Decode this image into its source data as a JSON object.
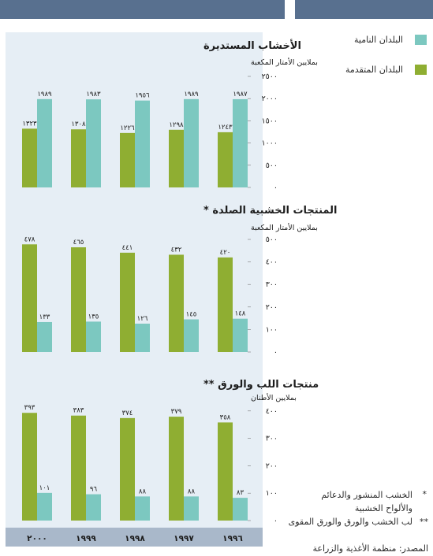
{
  "legend": [
    {
      "label": "البلدان النامية",
      "color": "#7cc8c0"
    },
    {
      "label": "البلدان المتقدمة",
      "color": "#8fae32"
    }
  ],
  "footnotes": [
    {
      "marker": "*",
      "text": "الخشب المنشور والدعائم والألواح الخشبية"
    },
    {
      "marker": "**",
      "text": "لب الخشب والورق والورق المقوى"
    }
  ],
  "source": "المصدر: منظمة الأغذية والزراعة",
  "years": [
    "١٩٩٦",
    "١٩٩٧",
    "١٩٩٨",
    "١٩٩٩",
    "٢٠٠٠"
  ],
  "chart_data": [
    {
      "type": "bar",
      "title": "الأخشاب المستديرة",
      "unit": "بملايين الأمتار المكعبة",
      "categories": [
        "1996",
        "1997",
        "1998",
        "1999",
        "2000"
      ],
      "y_ticks": [
        0,
        500,
        1000,
        1500,
        2000,
        2500
      ],
      "y_tick_labels": [
        "٠",
        "٥٠٠",
        "١٠٠٠",
        "١٥٠٠",
        "٢٠٠٠",
        "٢٥٠٠"
      ],
      "ylim": [
        0,
        2500
      ],
      "series": [
        {
          "name": "البلدان النامية",
          "color": "#7cc8c0",
          "values": [
            1987,
            1989,
            1956,
            1983,
            1989
          ],
          "labels": [
            "١٩٨٧",
            "١٩٨٩",
            "١٩٥٦",
            "١٩٨٣",
            "١٩٨٩"
          ]
        },
        {
          "name": "البلدان المتقدمة",
          "color": "#8fae32",
          "values": [
            1243,
            1298,
            1226,
            1308,
            1323
          ],
          "labels": [
            "١٢٤٣",
            "١٢٩٨",
            "١٢٢٦",
            "١٣٠٨",
            "١٣٢٣"
          ]
        }
      ]
    },
    {
      "type": "bar",
      "title": "المنتجات الخشبية الصلدة *",
      "unit": "بملايين الأمتار المكعبة",
      "categories": [
        "1996",
        "1997",
        "1998",
        "1999",
        "2000"
      ],
      "y_ticks": [
        0,
        100,
        200,
        300,
        400,
        500
      ],
      "y_tick_labels": [
        "٠",
        "١٠٠",
        "٢٠٠",
        "٣٠٠",
        "٤٠٠",
        "٥٠٠"
      ],
      "ylim": [
        0,
        500
      ],
      "series": [
        {
          "name": "البلدان النامية",
          "color": "#7cc8c0",
          "values": [
            148,
            145,
            126,
            135,
            133
          ],
          "labels": [
            "١٤٨",
            "١٤٥",
            "١٢٦",
            "١٣٥",
            "١٣٣"
          ]
        },
        {
          "name": "البلدان المتقدمة",
          "color": "#8fae32",
          "values": [
            420,
            432,
            441,
            465,
            478
          ],
          "labels": [
            "٤٢٠",
            "٤٣٢",
            "٤٤١",
            "٤٦٥",
            "٤٧٨"
          ]
        }
      ]
    },
    {
      "type": "bar",
      "title": "منتجات اللب والورق **",
      "unit": "بملايين الأطنان",
      "categories": [
        "1996",
        "1997",
        "1998",
        "1999",
        "2000"
      ],
      "y_ticks": [
        0,
        100,
        200,
        300,
        400
      ],
      "y_tick_labels": [
        "٠",
        "١٠٠",
        "٢٠٠",
        "٣٠٠",
        "٤٠٠"
      ],
      "ylim": [
        0,
        400
      ],
      "series": [
        {
          "name": "البلدان النامية",
          "color": "#7cc8c0",
          "values": [
            83,
            88,
            88,
            96,
            101
          ],
          "labels": [
            "٨٣",
            "٨٨",
            "٨٨",
            "٩٦",
            "١٠١"
          ]
        },
        {
          "name": "البلدان المتقدمة",
          "color": "#8fae32",
          "values": [
            358,
            379,
            374,
            383,
            393
          ],
          "labels": [
            "٣٥٨",
            "٣٧٩",
            "٣٧٤",
            "٣٨٣",
            "٣٩٣"
          ]
        }
      ]
    }
  ]
}
